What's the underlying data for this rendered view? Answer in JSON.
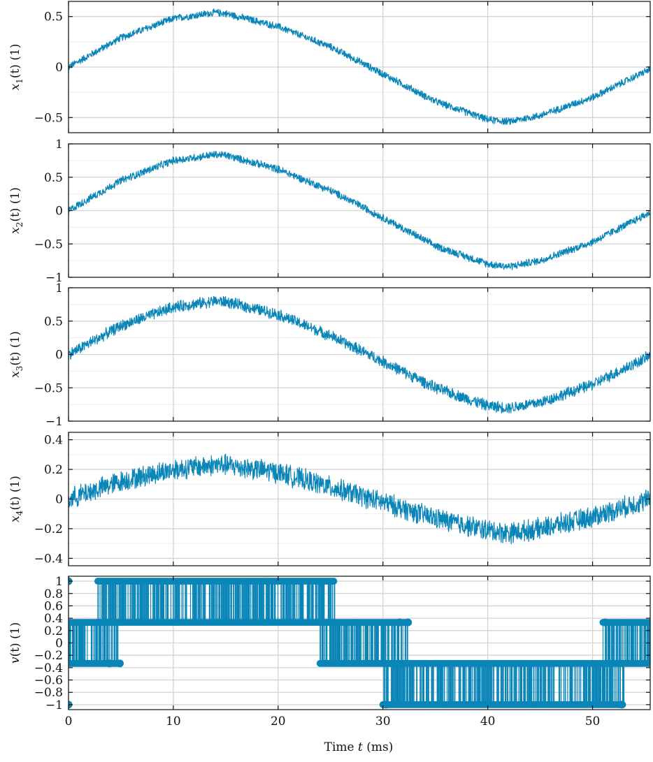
{
  "chart_data": [
    {
      "type": "line",
      "ylabel": "x_1(t) (1)",
      "ylabel_parts": {
        "var": "x",
        "sub": "1",
        "rest": "(t) (1)"
      },
      "ylim": [
        -0.65,
        0.65
      ],
      "yticks": [
        -0.5,
        0,
        0.5
      ],
      "ytick_labels": [
        "−0.5",
        "0",
        "0.5"
      ],
      "minor_yticks": [
        -0.25,
        0.25
      ],
      "xlim": [
        0,
        55.5
      ],
      "xticks": [
        0,
        10,
        20,
        30,
        40,
        50
      ],
      "grid": true,
      "series": [
        {
          "description": "noisy sinusoid",
          "x": [
            0,
            5,
            10,
            14,
            15,
            20,
            25,
            28,
            35,
            40,
            42,
            45,
            50,
            55.5
          ],
          "y": [
            0,
            0.29,
            0.48,
            0.54,
            0.53,
            0.4,
            0.2,
            0.04,
            -0.34,
            -0.52,
            -0.54,
            -0.48,
            -0.3,
            -0.02
          ],
          "noise_amplitude": 0.025,
          "color": "#0a85b8"
        }
      ]
    },
    {
      "type": "line",
      "ylabel": "x_2(t) (1)",
      "ylabel_parts": {
        "var": "x",
        "sub": "2",
        "rest": "(t) (1)"
      },
      "ylim": [
        -1,
        1
      ],
      "yticks": [
        -1,
        -0.5,
        0,
        0.5,
        1
      ],
      "ytick_labels": [
        "−1",
        "−0.5",
        "0",
        "0.5",
        "1"
      ],
      "minor_yticks": [
        -0.75,
        -0.25,
        0.25,
        0.75
      ],
      "xlim": [
        0,
        55.5
      ],
      "xticks": [
        0,
        10,
        20,
        30,
        40,
        50
      ],
      "grid": true,
      "series": [
        {
          "description": "noisy sinusoid",
          "x": [
            0,
            5,
            10,
            14,
            15,
            20,
            25,
            28,
            35,
            40,
            42,
            45,
            50,
            55.5
          ],
          "y": [
            0,
            0.45,
            0.75,
            0.84,
            0.83,
            0.62,
            0.3,
            0.06,
            -0.53,
            -0.8,
            -0.84,
            -0.75,
            -0.47,
            -0.03
          ],
          "noise_amplitude": 0.04,
          "color": "#0a85b8"
        }
      ]
    },
    {
      "type": "line",
      "ylabel": "x_3(t) (1)",
      "ylabel_parts": {
        "var": "x",
        "sub": "3",
        "rest": "(t) (1)"
      },
      "ylim": [
        -1,
        1
      ],
      "yticks": [
        -1,
        -0.5,
        0,
        0.5,
        1
      ],
      "ytick_labels": [
        "−1",
        "−0.5",
        "0",
        "0.5",
        "1"
      ],
      "minor_yticks": [
        -0.75,
        -0.25,
        0.25,
        0.75
      ],
      "xlim": [
        0,
        55.5
      ],
      "xticks": [
        0,
        10,
        20,
        30,
        40,
        50
      ],
      "grid": true,
      "series": [
        {
          "description": "noisy sinusoid",
          "x": [
            0,
            5,
            10,
            14,
            15,
            20,
            25,
            28,
            35,
            40,
            42,
            45,
            50,
            55.5
          ],
          "y": [
            0,
            0.43,
            0.71,
            0.8,
            0.79,
            0.6,
            0.28,
            0.05,
            -0.5,
            -0.77,
            -0.8,
            -0.72,
            -0.45,
            -0.02
          ],
          "noise_amplitude": 0.06,
          "color": "#0a85b8"
        }
      ]
    },
    {
      "type": "line",
      "ylabel": "x_4(t) (1)",
      "ylabel_parts": {
        "var": "x",
        "sub": "4",
        "rest": "(t) (1)"
      },
      "ylim": [
        -0.45,
        0.45
      ],
      "yticks": [
        -0.4,
        -0.2,
        0,
        0.2,
        0.4
      ],
      "ytick_labels": [
        "−0.4",
        "−0.2",
        "0",
        "0.2",
        "0.4"
      ],
      "minor_yticks": [
        -0.3,
        -0.1,
        0.1,
        0.3
      ],
      "xlim": [
        0,
        55.5
      ],
      "xticks": [
        0,
        10,
        20,
        30,
        40,
        50
      ],
      "grid": true,
      "series": [
        {
          "description": "noisy sinusoid",
          "x": [
            0,
            5,
            10,
            14,
            15,
            20,
            25,
            28,
            35,
            40,
            42,
            45,
            50,
            55.5
          ],
          "y": [
            0,
            0.12,
            0.2,
            0.23,
            0.23,
            0.18,
            0.08,
            0.02,
            -0.13,
            -0.21,
            -0.23,
            -0.2,
            -0.12,
            0
          ],
          "noise_amplitude": 0.05,
          "color": "#0a85b8"
        }
      ]
    },
    {
      "type": "line",
      "ylabel": "v(t) (1)",
      "ylabel_parts": {
        "var": "v",
        "sub": "",
        "rest": "(t) (1)"
      },
      "ylim": [
        -1.08,
        1.08
      ],
      "yticks": [
        -1,
        -0.8,
        -0.6,
        -0.4,
        -0.2,
        0,
        0.2,
        0.4,
        0.6,
        0.8,
        1
      ],
      "ytick_labels": [
        "−1",
        "−0.8",
        "−0.6",
        "−0.4",
        "−0.2",
        "0",
        "0.2",
        "0.4",
        "0.6",
        "0.8",
        "1"
      ],
      "minor_yticks": [],
      "xlim": [
        0,
        55.5
      ],
      "xticks": [
        0,
        10,
        20,
        30,
        40,
        50
      ],
      "grid": true,
      "levels": [
        -1,
        -0.333,
        0.333,
        1
      ],
      "series": [
        {
          "description": "quantized switching signal with circle markers",
          "segments": [
            {
              "x0": 0,
              "x1": 4.8,
              "levels": [
                0.333,
                -0.333
              ]
            },
            {
              "x0": 2.8,
              "x1": 25.4,
              "levels": [
                1,
                0.333
              ]
            },
            {
              "x0": 24,
              "x1": 32.4,
              "levels": [
                0.333,
                -0.333
              ]
            },
            {
              "x0": 30,
              "x1": 53,
              "levels": [
                -0.333,
                -1
              ]
            },
            {
              "x0": 51,
              "x1": 55.5,
              "levels": [
                0.333,
                -0.333
              ]
            }
          ],
          "color": "#0a85b8"
        }
      ]
    }
  ],
  "xlabel": "Time t (ms)",
  "xlabel_parts": {
    "pre": "Time ",
    "var": "t",
    "post": " (ms)"
  },
  "xtick_labels": [
    "0",
    "10",
    "20",
    "30",
    "40",
    "50"
  ]
}
